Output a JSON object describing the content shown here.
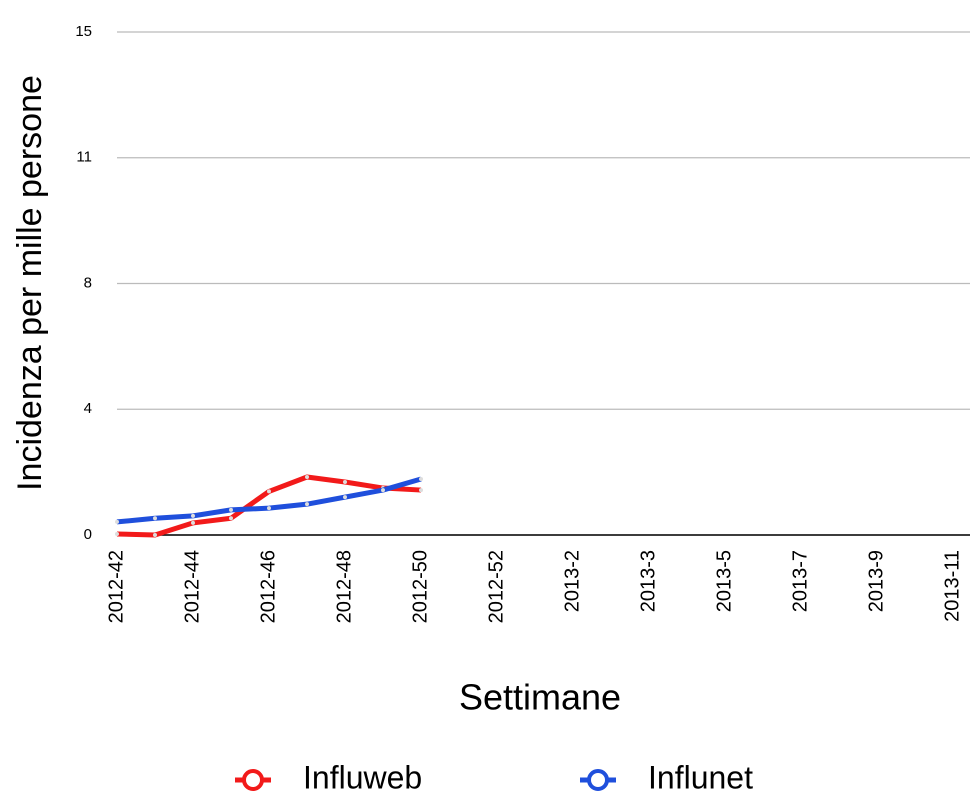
{
  "chart_data": {
    "type": "line",
    "x_label": "Settimane",
    "y_label": "Incidenza per mille persone",
    "categories": [
      "2012-42",
      null,
      "2012-44",
      null,
      "2012-46",
      null,
      "2012-48",
      null,
      "2012-50",
      null,
      "2012-52",
      null,
      "2013-2",
      null,
      "2013-3",
      null,
      "2013-5",
      null,
      "2013-7",
      null,
      "2013-9",
      null,
      "2013-11"
    ],
    "series": [
      {
        "name": "Influweb",
        "color": "#f21a1a",
        "values": [
          0.03,
          0,
          0.36,
          0.5,
          1.3,
          1.73,
          1.58,
          1.4,
          1.34,
          null,
          null,
          null,
          null,
          null,
          null,
          null,
          null,
          null,
          null,
          null,
          null,
          null,
          null
        ]
      },
      {
        "name": "Influnet",
        "color": "#1f4fdc",
        "values": [
          0.39,
          0.5,
          0.57,
          0.75,
          0.8,
          0.92,
          1.13,
          1.34,
          1.67,
          null,
          null,
          null,
          null,
          null,
          null,
          null,
          null,
          null,
          null,
          null,
          null,
          null,
          null
        ]
      }
    ],
    "ylim": [
      0,
      15
    ],
    "yticks": [
      0,
      {
        "value": 3.75,
        "label": "4"
      },
      {
        "value": 7.5,
        "label": "8"
      },
      {
        "value": 11.25,
        "label": "11"
      },
      15
    ],
    "grid": true,
    "legend": "bottom"
  }
}
